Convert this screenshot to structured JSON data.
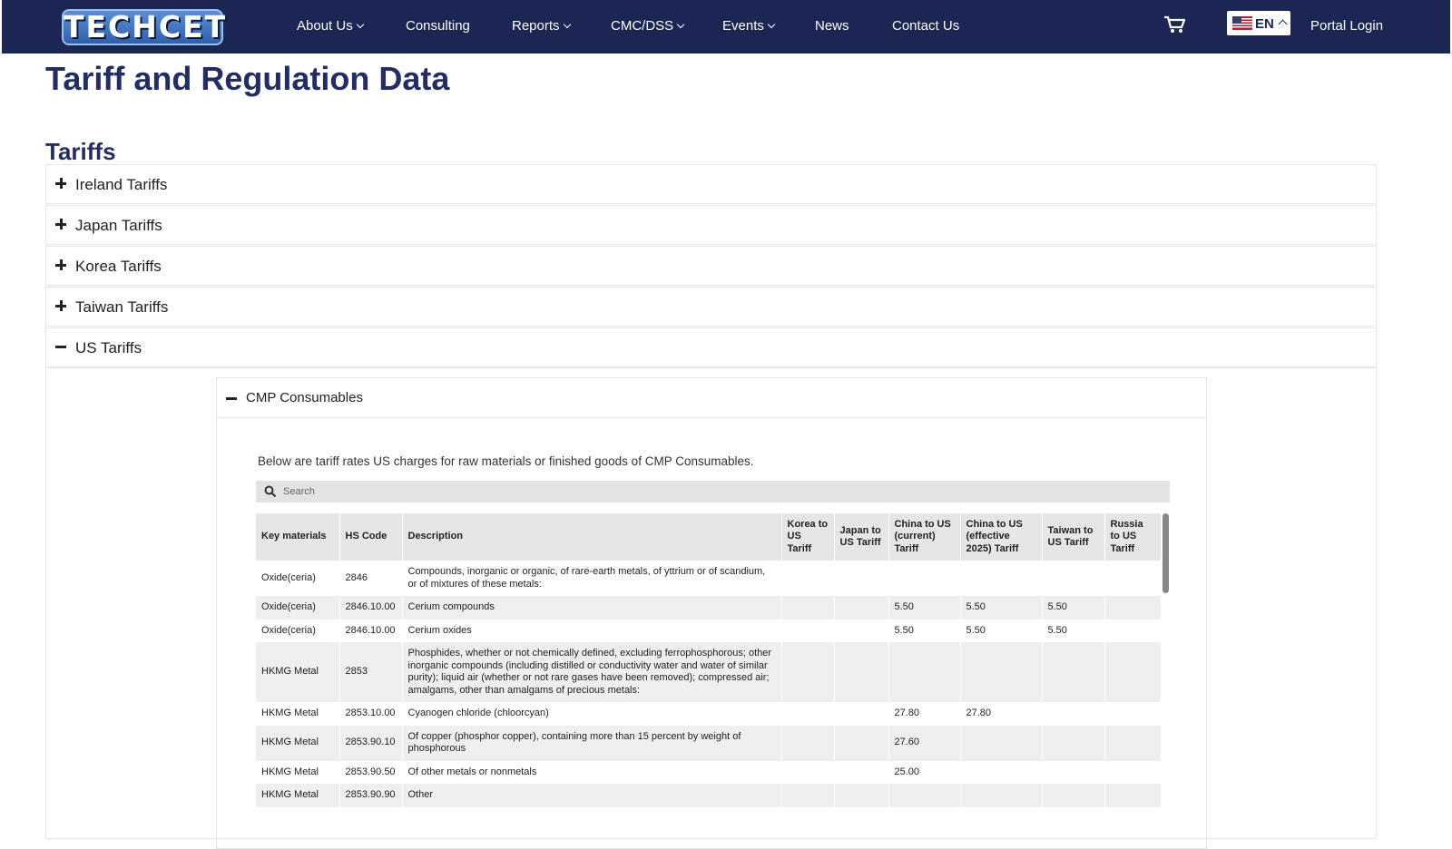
{
  "nav": {
    "logo": "TECHCET",
    "items": [
      "About Us",
      "Consulting",
      "Reports",
      "CMC/DSS",
      "Events",
      "News",
      "Contact Us"
    ],
    "lang": "EN",
    "login": "Portal Login"
  },
  "page_title": "Tariff and Regulation Data",
  "section_title": "Tariffs",
  "accordions": [
    "Ireland Tariffs",
    "Japan Tariffs",
    "Korea Tariffs",
    "Taiwan Tariffs",
    "US Tariffs"
  ],
  "sub_accordion": "CMP Consumables",
  "intro": "Below are tariff rates US charges for raw materials or finished goods of CMP Consumables.",
  "search_placeholder": "Search",
  "table": {
    "headers": [
      "Key materials",
      "HS Code",
      "Description",
      "Korea to US Tariff",
      "Japan to US Tariff",
      "China to US (current) Tariff",
      "China to US (effective 2025) Tariff",
      "Taiwan to US Tariff",
      "Russia to US Tariff"
    ],
    "rows": [
      [
        "Oxide(ceria)",
        "2846",
        "Compounds, inorganic or organic, of rare-earth metals, of yttrium or of scandium, or of mixtures of these metals:",
        null,
        null,
        null,
        null,
        null,
        null
      ],
      [
        "Oxide(ceria)",
        "2846.10.00",
        "Cerium compounds",
        null,
        null,
        "5.50",
        "5.50",
        "5.50",
        null
      ],
      [
        "Oxide(ceria)",
        "2846.10.00",
        "Cerium oxides",
        null,
        null,
        "5.50",
        "5.50",
        "5.50",
        null
      ],
      [
        "HKMG Metal",
        "2853",
        "Phosphides, whether or not chemically defined, excluding ferrophosphorous; other inorganic compounds (including distilled or conductivity water and water of similar purity); liquid air (whether or not rare gases have been removed); compressed air; amalgams, other than amalgams of precious metals:",
        null,
        null,
        null,
        null,
        null,
        null
      ],
      [
        "HKMG Metal",
        "2853.10.00",
        "Cyanogen chloride (chloorcyan)",
        null,
        null,
        "27.80",
        "27.80",
        null,
        null
      ],
      [
        "HKMG Metal",
        "2853.90.10",
        "Of copper (phosphor copper), containing more than 15 percent by weight of phosphorous",
        null,
        null,
        "27.60",
        null,
        null,
        null
      ],
      [
        "HKMG Metal",
        "2853.90.50",
        "Of other metals or nonmetals",
        null,
        null,
        "25.00",
        null,
        null,
        null
      ],
      [
        "HKMG Metal",
        "2853.90.90",
        "Other",
        null,
        null,
        null,
        null,
        null,
        null
      ]
    ]
  }
}
